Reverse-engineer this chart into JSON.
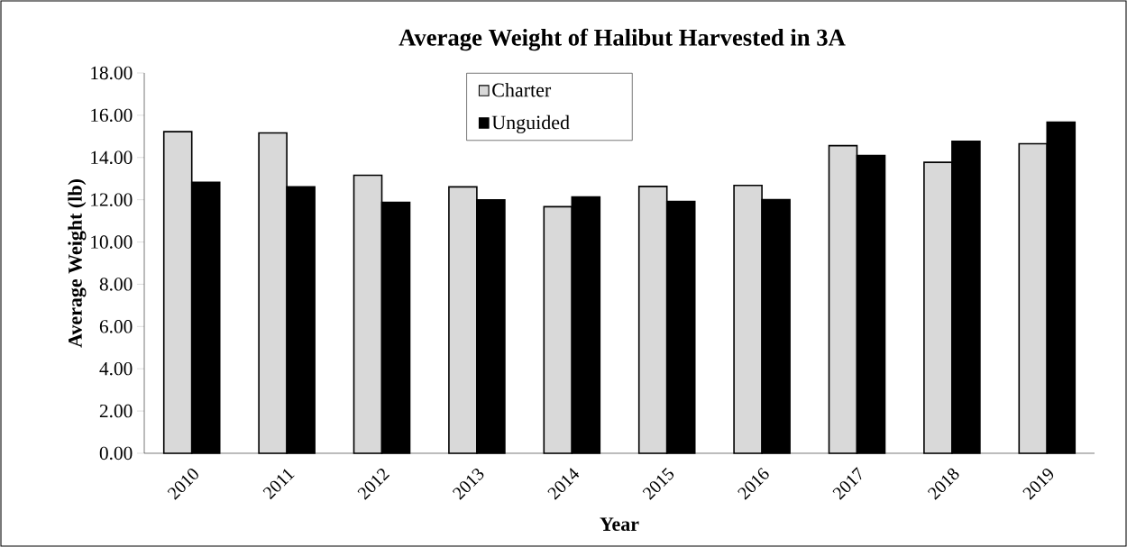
{
  "chart_data": {
    "type": "bar",
    "title": "Average Weight of Halibut Harvested in 3A",
    "xlabel": "Year",
    "ylabel": "Average Weight (lb)",
    "categories": [
      "2010",
      "2011",
      "2012",
      "2013",
      "2014",
      "2015",
      "2016",
      "2017",
      "2018",
      "2019"
    ],
    "series": [
      {
        "name": "Charter",
        "color": "#d9d9d9",
        "values": [
          15.22,
          15.16,
          13.16,
          12.61,
          11.67,
          12.63,
          12.68,
          14.56,
          13.77,
          14.65
        ]
      },
      {
        "name": "Unguided",
        "color": "#000000",
        "values": [
          12.83,
          12.61,
          11.88,
          11.99,
          12.13,
          11.92,
          12.01,
          14.1,
          14.77,
          15.67
        ]
      }
    ],
    "ylim": [
      0,
      18
    ],
    "yticks": [
      {
        "value": 0,
        "label": "0.00"
      },
      {
        "value": 2,
        "label": "2.00"
      },
      {
        "value": 4,
        "label": "4.00"
      },
      {
        "value": 6,
        "label": "6.00"
      },
      {
        "value": 8,
        "label": "8.00"
      },
      {
        "value": 10,
        "label": "10.00"
      },
      {
        "value": 12,
        "label": "12.00"
      },
      {
        "value": 14,
        "label": "14.00"
      },
      {
        "value": 16,
        "label": "16.00"
      },
      {
        "value": 18,
        "label": "18.00"
      }
    ],
    "grid": false,
    "legend": "top"
  }
}
